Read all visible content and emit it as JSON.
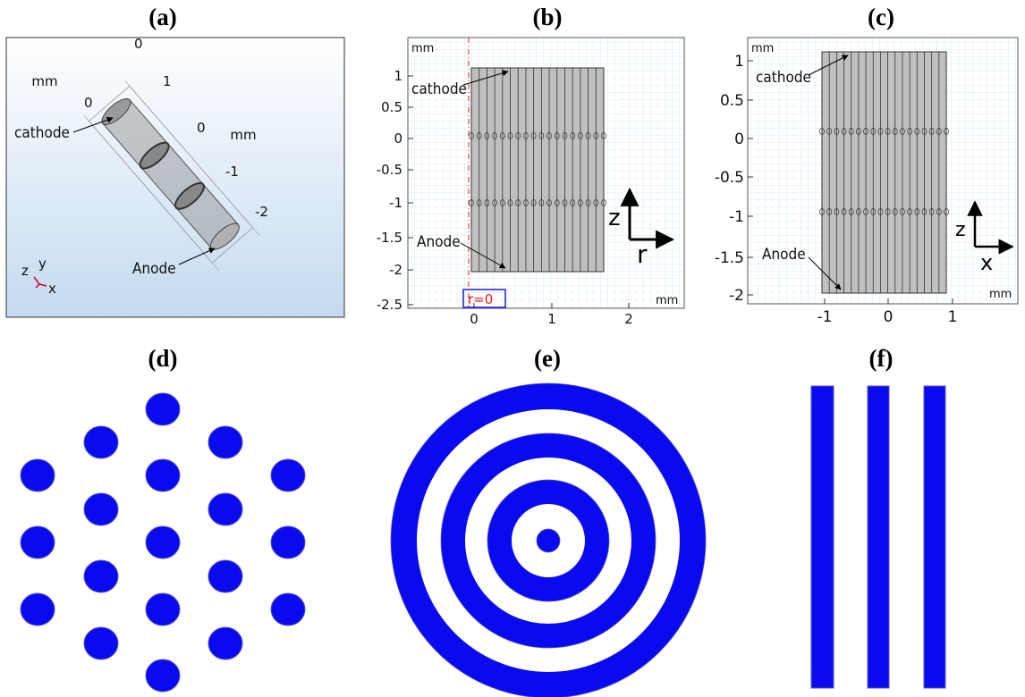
{
  "a": {
    "label": "(a)",
    "units": [
      "mm",
      "mm"
    ],
    "ticks": [
      "0",
      "1",
      "0",
      "0",
      "-1",
      "-2"
    ],
    "cathode": "cathode",
    "anode": "Anode",
    "axes": [
      "z",
      "y",
      "x"
    ]
  },
  "b": {
    "label": "(b)",
    "unit_top": "mm",
    "unit_bottom": "mm",
    "yticks": [
      "1",
      "0.5",
      "0",
      "-0.5",
      "-1",
      "-1.5",
      "-2",
      "-2.5"
    ],
    "xticks": [
      "0",
      "1",
      "2"
    ],
    "cathode": "cathode",
    "anode": "Anode",
    "axis_v": "z",
    "axis_h": "r",
    "marker": "r=0"
  },
  "c": {
    "label": "(c)",
    "unit_top": "mm",
    "unit_bottom": "mm",
    "yticks": [
      "1",
      "0.5",
      "0",
      "-0.5",
      "-1",
      "-1.5",
      "-2"
    ],
    "xticks": [
      "-1",
      "0",
      "1"
    ],
    "cathode": "cathode",
    "anode": "Anode",
    "axis_v": "z",
    "axis_h": "x"
  },
  "d": {
    "label": "(d)"
  },
  "e": {
    "label": "(e)"
  },
  "f": {
    "label": "(f)"
  }
}
